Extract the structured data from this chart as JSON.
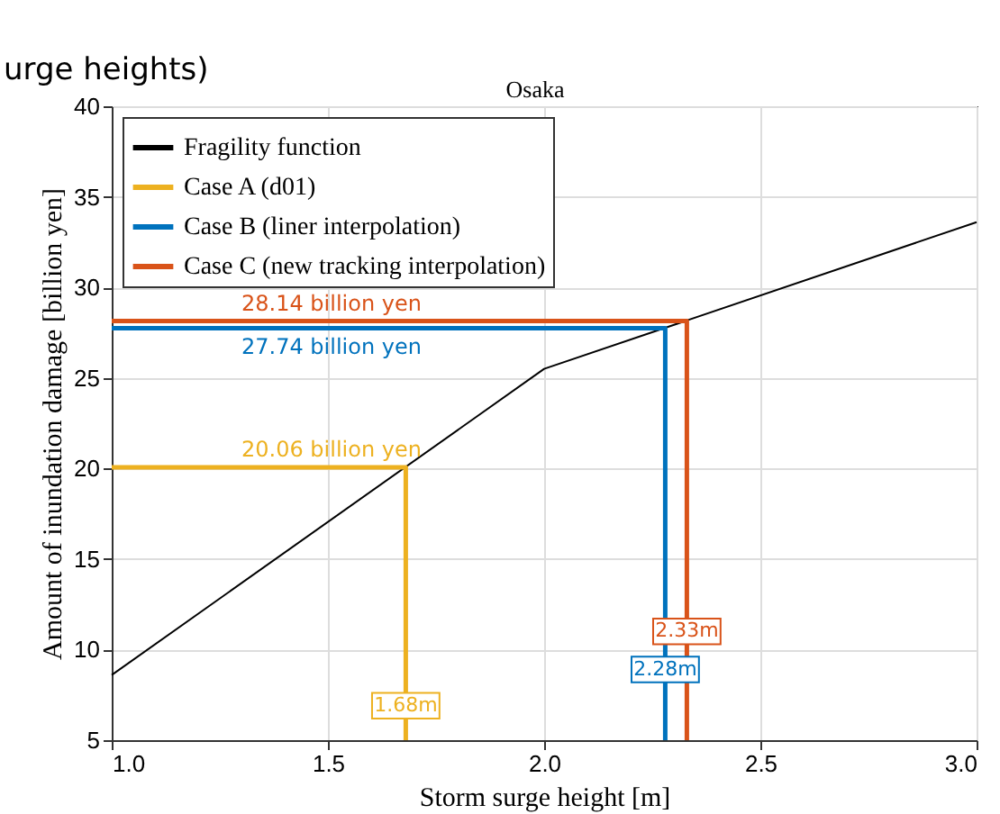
{
  "chart_data": {
    "type": "line",
    "title": "Osaka",
    "xlabel": "Storm surge height [m]",
    "ylabel": "Amount of inundation damage [billion yen]",
    "series": [
      {
        "name": "Fragility function",
        "color": "#000000",
        "x": [
          1.0,
          2.0,
          3.0
        ],
        "values": [
          8.6,
          25.5,
          33.6
        ]
      },
      {
        "name": "Case A (d01)",
        "color": "#edb120",
        "x": [
          1.68,
          1.68,
          1.0
        ],
        "values": [
          5,
          20.06,
          20.06
        ]
      },
      {
        "name": "Case B (liner interpolation)",
        "color": "#0072bd",
        "x": [
          2.28,
          2.28,
          1.0
        ],
        "values": [
          5,
          27.74,
          27.74
        ]
      },
      {
        "name": "Case C (new tracking interpolation)",
        "color": "#d95319",
        "x": [
          2.33,
          2.33,
          1.0
        ],
        "values": [
          5,
          28.14,
          28.14
        ]
      }
    ],
    "annotations": [
      {
        "text": "20.06 billion yen",
        "x": 1.3,
        "y": 20.06
      },
      {
        "text": "1.68m",
        "x": 1.68,
        "y": 6.9
      },
      {
        "text": "27.74 billion yen",
        "x": 1.3,
        "y": 27.74
      },
      {
        "text": "2.28m",
        "x": 2.28,
        "y": 8.9
      },
      {
        "text": "28.14 billion yen",
        "x": 1.3,
        "y": 28.14
      },
      {
        "text": "2.33m",
        "x": 2.33,
        "y": 11.0
      },
      "urge heights)"
    ],
    "xlim": [
      1.0,
      3.0
    ],
    "xticks": [
      {
        "value": 1.0,
        "label": "1.0"
      },
      {
        "value": 1.5,
        "label": "1.5"
      },
      {
        "value": 2.0,
        "label": "2.0"
      },
      {
        "value": 2.5,
        "label": "2.5"
      },
      {
        "value": 3.0,
        "label": "3.0"
      }
    ],
    "ylim": [
      5,
      40
    ],
    "yticks": [
      5,
      10,
      15,
      20,
      25,
      30,
      35,
      40
    ],
    "grid": true,
    "legend": "top left",
    "line_style": "solid",
    "marker": "none"
  }
}
